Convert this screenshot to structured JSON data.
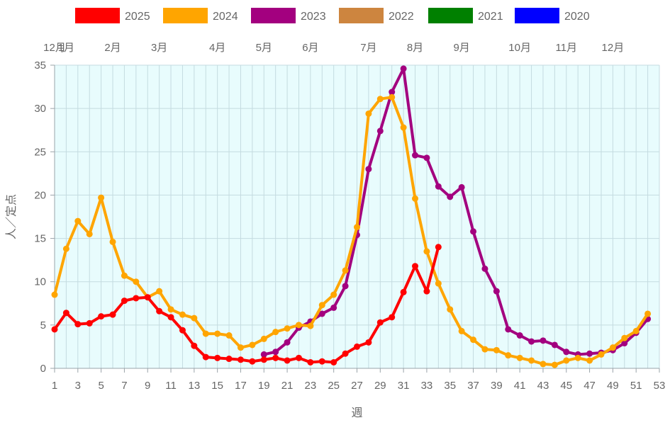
{
  "chart_data": {
    "type": "line",
    "xlabel": "週",
    "ylabel": "人／定点",
    "xlim": [
      1,
      53
    ],
    "x_ticks": [
      1,
      3,
      5,
      7,
      9,
      11,
      13,
      15,
      17,
      19,
      21,
      23,
      25,
      27,
      29,
      31,
      33,
      35,
      37,
      39,
      41,
      43,
      45,
      47,
      49,
      51,
      53
    ],
    "ylim": [
      0,
      35
    ],
    "y_ticks": [
      0,
      5,
      10,
      15,
      20,
      25,
      30,
      35
    ],
    "grid": true,
    "plot_background": "#e8fcfd",
    "legend_position": "top",
    "month_labels": [
      {
        "label": "12月",
        "week": 1
      },
      {
        "label": "1月",
        "week": 2
      },
      {
        "label": "2月",
        "week": 6
      },
      {
        "label": "3月",
        "week": 10
      },
      {
        "label": "4月",
        "week": 15
      },
      {
        "label": "5月",
        "week": 19
      },
      {
        "label": "6月",
        "week": 23
      },
      {
        "label": "7月",
        "week": 28
      },
      {
        "label": "8月",
        "week": 32
      },
      {
        "label": "9月",
        "week": 36
      },
      {
        "label": "10月",
        "week": 41
      },
      {
        "label": "11月",
        "week": 45
      },
      {
        "label": "12月",
        "week": 49
      }
    ],
    "series": [
      {
        "name": "2025",
        "color": "#ff0000",
        "x": [
          1,
          2,
          3,
          4,
          5,
          6,
          7,
          8,
          9,
          10,
          11,
          12,
          13,
          14,
          15,
          16,
          17,
          18,
          19,
          20,
          21,
          22,
          23,
          24,
          25,
          26,
          27,
          28,
          29,
          30,
          31,
          32,
          33,
          34
        ],
        "values": [
          4.5,
          6.4,
          5.1,
          5.2,
          6.0,
          6.2,
          7.8,
          8.1,
          8.2,
          6.6,
          5.9,
          4.4,
          2.6,
          1.3,
          1.2,
          1.1,
          1.0,
          0.8,
          1.0,
          1.2,
          0.9,
          1.2,
          0.7,
          0.8,
          0.7,
          1.7,
          2.5,
          3.0,
          5.3,
          5.9,
          8.8,
          11.8,
          8.9,
          14.0
        ]
      },
      {
        "name": "2024",
        "color": "#ffa500",
        "x": [
          1,
          2,
          3,
          4,
          5,
          6,
          7,
          8,
          9,
          10,
          11,
          12,
          13,
          14,
          15,
          16,
          17,
          18,
          19,
          20,
          21,
          22,
          23,
          24,
          25,
          26,
          27,
          28,
          29,
          30,
          31,
          32,
          33,
          34,
          35,
          36,
          37,
          38,
          39,
          40,
          41,
          42,
          43,
          44,
          45,
          46,
          47,
          48,
          49,
          50,
          51,
          52
        ],
        "values": [
          8.5,
          13.8,
          17.0,
          15.5,
          19.7,
          14.6,
          10.7,
          10.0,
          8.2,
          8.9,
          6.8,
          6.2,
          5.8,
          4.0,
          4.0,
          3.8,
          2.4,
          2.7,
          3.4,
          4.2,
          4.6,
          5.0,
          4.9,
          7.3,
          8.5,
          11.3,
          16.3,
          29.4,
          31.1,
          31.3,
          27.8,
          19.6,
          13.5,
          9.8,
          6.8,
          4.3,
          3.3,
          2.2,
          2.1,
          1.5,
          1.2,
          0.9,
          0.5,
          0.4,
          0.9,
          1.2,
          0.9,
          1.6,
          2.4,
          3.5,
          4.3,
          6.3
        ]
      },
      {
        "name": "2023",
        "color": "#a3007f",
        "x": [
          19,
          20,
          21,
          22,
          23,
          24,
          25,
          26,
          27,
          28,
          29,
          30,
          31,
          32,
          33,
          34,
          35,
          36,
          37,
          38,
          39,
          40,
          41,
          42,
          43,
          44,
          45,
          46,
          47,
          48,
          49,
          50,
          51,
          52
        ],
        "values": [
          1.6,
          1.9,
          3.0,
          4.7,
          5.4,
          6.3,
          7.0,
          9.5,
          15.4,
          23.0,
          27.4,
          31.9,
          34.6,
          24.6,
          24.3,
          21.0,
          19.8,
          20.9,
          15.8,
          11.5,
          8.9,
          4.5,
          3.8,
          3.1,
          3.2,
          2.7,
          1.9,
          1.6,
          1.7,
          1.8,
          2.1,
          2.9,
          4.1,
          5.7
        ]
      },
      {
        "name": "2022",
        "color": "#cd853f",
        "x": [],
        "values": []
      },
      {
        "name": "2021",
        "color": "#008000",
        "x": [],
        "values": []
      },
      {
        "name": "2020",
        "color": "#0000ff",
        "x": [],
        "values": []
      }
    ]
  }
}
